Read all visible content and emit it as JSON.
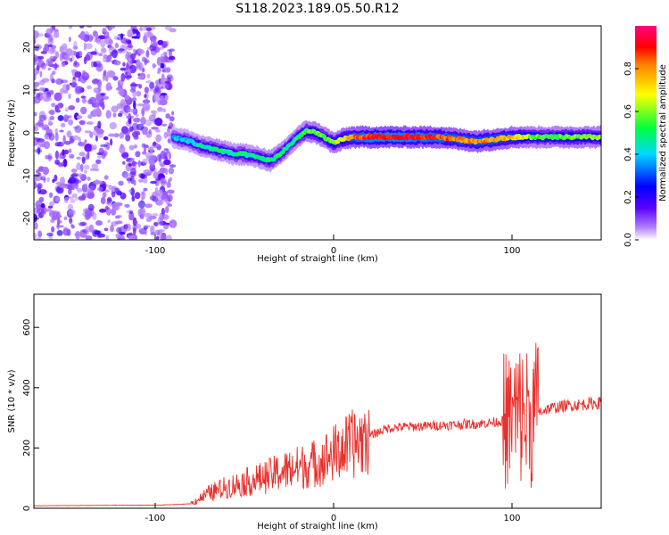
{
  "title": "S118.2023.189.05.50.R12",
  "chart_data": [
    {
      "type": "heatmap",
      "xlabel": "Height of straight line (km)",
      "ylabel": "Frequency (Hz)",
      "xlim": [
        -168,
        150
      ],
      "ylim": [
        -25,
        25
      ],
      "xticks": [
        -100,
        0,
        100
      ],
      "yticks": [
        -20,
        -10,
        0,
        10,
        20
      ],
      "colorbar": {
        "label": "Normalized spectral amplitude",
        "ticks": [
          "0.0",
          "0.2",
          "0.4",
          "0.6",
          "0.8"
        ],
        "range": [
          0,
          1
        ],
        "stops": [
          "#ffffff",
          "#7f00ff",
          "#0000ff",
          "#00ffff",
          "#00ff00",
          "#ffff00",
          "#ff0000",
          "#ff0080"
        ]
      },
      "ridge": {
        "name": "dominant frequency",
        "x": [
          -90,
          -85,
          -80,
          -75,
          -70,
          -65,
          -60,
          -55,
          -50,
          -45,
          -40,
          -35,
          -30,
          -25,
          -20,
          -15,
          -10,
          -5,
          0,
          5,
          10,
          20,
          40,
          60,
          70,
          80,
          90,
          100,
          110,
          120,
          130,
          140,
          150
        ],
        "y": [
          -1,
          -1.5,
          -2,
          -3,
          -3.5,
          -4,
          -4.5,
          -5,
          -5,
          -5.5,
          -6,
          -6.5,
          -5,
          -3,
          -1,
          0.5,
          0,
          -1,
          -2.5,
          -1.5,
          -1,
          -1,
          -1,
          -1,
          -1.5,
          -2,
          -1.5,
          -1,
          -1,
          -1,
          -1,
          -1,
          -1
        ],
        "amplitude": [
          0.35,
          0.4,
          0.4,
          0.45,
          0.45,
          0.5,
          0.45,
          0.45,
          0.5,
          0.45,
          0.45,
          0.5,
          0.5,
          0.45,
          0.5,
          0.55,
          0.6,
          0.55,
          0.6,
          0.65,
          0.8,
          0.9,
          0.9,
          0.85,
          0.8,
          0.8,
          0.8,
          0.75,
          0.6,
          0.55,
          0.6,
          0.6,
          0.6
        ]
      },
      "noise_region_x": [
        -168,
        -90
      ]
    },
    {
      "type": "line",
      "xlabel": "Height of straight line (km)",
      "ylabel": "SNR (10 * v/v)",
      "xlim": [
        -168,
        150
      ],
      "ylim": [
        0,
        710
      ],
      "xticks": [
        -100,
        0,
        100
      ],
      "yticks": [
        0,
        200,
        400,
        600
      ],
      "color": "#e8302c",
      "series": [
        {
          "x": [
            -168,
            -150,
            -120,
            -100,
            -90,
            -80,
            -70,
            -60,
            -50,
            -40,
            -30,
            -20,
            -10,
            0,
            10,
            20,
            30,
            40,
            50,
            60,
            70,
            80,
            90,
            95,
            100,
            105,
            110,
            115,
            120,
            130,
            140,
            150
          ],
          "y": [
            8,
            9,
            10,
            10,
            12,
            15,
            50,
            70,
            85,
            100,
            120,
            135,
            150,
            180,
            210,
            240,
            265,
            270,
            272,
            275,
            278,
            280,
            285,
            290,
            300,
            310,
            300,
            320,
            330,
            340,
            345,
            350
          ]
        }
      ]
    }
  ]
}
